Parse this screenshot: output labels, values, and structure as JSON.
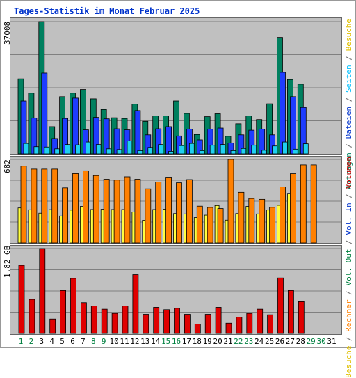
{
  "title": "Tages-Statistik im Monat Februar 2025",
  "panels": {
    "top": {
      "max_label": "37008"
    },
    "middle": {
      "max_label": "682"
    },
    "bottom": {
      "max_label": "1.82 GB"
    }
  },
  "legend": {
    "top": [
      {
        "text": "Anfragen",
        "color": "#00805f"
      },
      {
        "text": " / ",
        "color": "#666666"
      },
      {
        "text": "Dateien",
        "color": "#0033cc"
      },
      {
        "text": " / ",
        "color": "#666666"
      },
      {
        "text": "Seiten",
        "color": "#00c0ff"
      },
      {
        "text": " / ",
        "color": "#666666"
      },
      {
        "text": "Besuche",
        "color": "#e0c000"
      }
    ],
    "middle": [
      {
        "text": "Besuche",
        "color": "#e0c000"
      },
      {
        "text": " / ",
        "color": "#666666"
      },
      {
        "text": "Rechner",
        "color": "#ff8000"
      },
      {
        "text": " / ",
        "color": "#666666"
      },
      {
        "text": "Vol. Out",
        "color": "#008040"
      },
      {
        "text": " / ",
        "color": "#666666"
      },
      {
        "text": "Vol. In",
        "color": "#0033cc"
      },
      {
        "text": " / ",
        "color": "#666666"
      },
      {
        "text": "Volumen",
        "color": "#cc0000"
      }
    ]
  },
  "colors": {
    "anfragen": "#00805f",
    "dateien": "#1e3cff",
    "seiten": "#20d0f0",
    "besuche": "#ffff40",
    "rechner": "#ff8000",
    "volumen": "#e00000",
    "weekday_label": "#000000",
    "weekend_label": "#008040"
  },
  "chart_data": [
    {
      "type": "bar",
      "name": "requests-files-pages",
      "categories": [
        "1",
        "2",
        "3",
        "4",
        "5",
        "6",
        "7",
        "8",
        "9",
        "10",
        "11",
        "12",
        "13",
        "14",
        "15",
        "16",
        "17",
        "18",
        "19",
        "20",
        "21",
        "22",
        "23",
        "24",
        "25",
        "26",
        "27",
        "28",
        "29",
        "30",
        "31"
      ],
      "ylim": [
        0,
        37008
      ],
      "series": [
        {
          "name": "Anfragen",
          "values": [
            21000,
            17000,
            37008,
            7600,
            16000,
            17000,
            18000,
            15400,
            12400,
            10100,
            9900,
            13900,
            9100,
            10600,
            10600,
            14800,
            11300,
            5400,
            10400,
            11200,
            4900,
            8400,
            10600,
            9600,
            14000,
            32600,
            20800,
            19500,
            0,
            0,
            0
          ]
        },
        {
          "name": "Dateien",
          "values": [
            14800,
            10000,
            22600,
            4300,
            9900,
            15600,
            6700,
            10200,
            9800,
            7000,
            6700,
            12100,
            5300,
            7000,
            7600,
            5000,
            6900,
            3900,
            6900,
            7200,
            3000,
            5300,
            6600,
            6900,
            5300,
            22800,
            16000,
            13000,
            0,
            0,
            0
          ]
        },
        {
          "name": "Seiten",
          "values": [
            2900,
            2000,
            1900,
            1400,
            2600,
            2500,
            3300,
            2600,
            1400,
            1200,
            3600,
            900,
            1800,
            2600,
            700,
            2300,
            2900,
            900,
            2400,
            2600,
            900,
            1500,
            2400,
            1000,
            2200,
            3300,
            1300,
            2800,
            0,
            0,
            0
          ]
        }
      ]
    },
    {
      "type": "bar",
      "name": "visits-hosts",
      "categories": [
        "1",
        "2",
        "3",
        "4",
        "5",
        "6",
        "7",
        "8",
        "9",
        "10",
        "11",
        "12",
        "13",
        "14",
        "15",
        "16",
        "17",
        "18",
        "19",
        "20",
        "21",
        "22",
        "23",
        "24",
        "25",
        "26",
        "27",
        "28",
        "29",
        "30",
        "31"
      ],
      "ylim": [
        0,
        682
      ],
      "series": [
        {
          "name": "Besuche",
          "values": [
            286,
            271,
            243,
            272,
            220,
            268,
            298,
            273,
            275,
            273,
            273,
            253,
            185,
            273,
            276,
            240,
            237,
            207,
            227,
            305,
            186,
            240,
            298,
            237,
            269,
            307,
            405,
            0,
            0,
            0,
            0
          ]
        },
        {
          "name": "Rechner",
          "values": [
            627,
            603,
            603,
            603,
            450,
            566,
            589,
            550,
            520,
            513,
            540,
            520,
            442,
            497,
            537,
            491,
            517,
            300,
            290,
            281,
            682,
            413,
            363,
            356,
            291,
            458,
            565,
            637,
            637,
            0,
            0
          ]
        }
      ]
    },
    {
      "type": "bar",
      "name": "volume",
      "categories": [
        "1",
        "2",
        "3",
        "4",
        "5",
        "6",
        "7",
        "8",
        "9",
        "10",
        "11",
        "12",
        "13",
        "14",
        "15",
        "16",
        "17",
        "18",
        "19",
        "20",
        "21",
        "22",
        "23",
        "24",
        "25",
        "26",
        "27",
        "28",
        "29",
        "30",
        "31"
      ],
      "ylim": [
        0,
        1.82
      ],
      "series": [
        {
          "name": "Volumen",
          "values": [
            1.46,
            0.73,
            1.82,
            0.31,
            0.92,
            1.18,
            0.66,
            0.59,
            0.52,
            0.43,
            0.59,
            1.26,
            0.41,
            0.56,
            0.51,
            0.54,
            0.41,
            0.2,
            0.41,
            0.56,
            0.22,
            0.35,
            0.43,
            0.52,
            0.4,
            1.19,
            0.92,
            0.68,
            0,
            0,
            0
          ]
        }
      ]
    }
  ],
  "weekend_days": [
    1,
    2,
    8,
    9,
    15,
    16,
    22,
    23,
    29,
    30
  ]
}
